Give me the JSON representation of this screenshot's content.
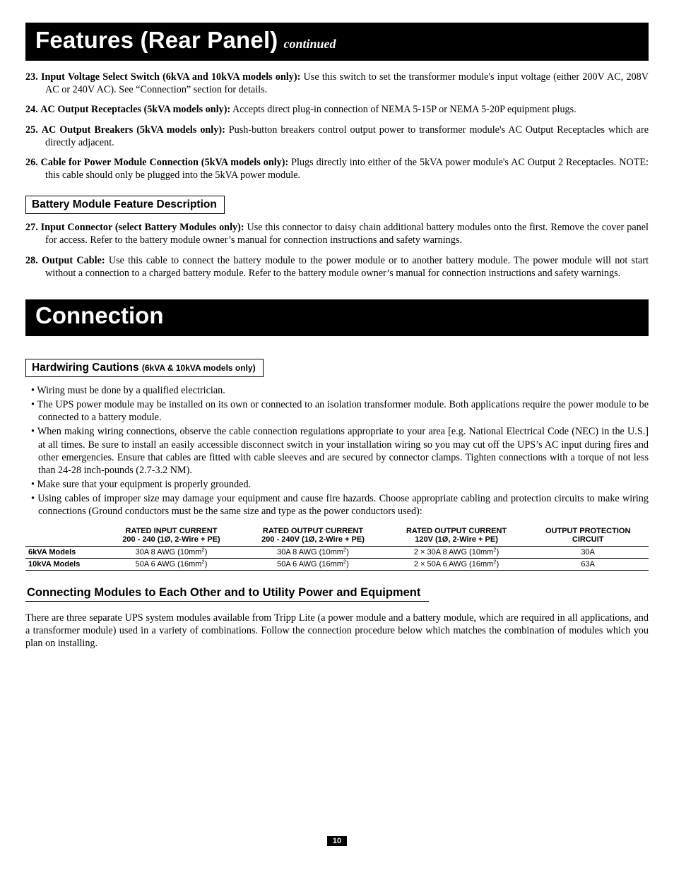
{
  "header1": {
    "title": "Features (Rear Panel)",
    "suffix": "continued"
  },
  "features": [
    {
      "num": "23.",
      "lead": "Input Voltage Select Switch (6kVA and 10kVA models only):",
      "text": " Use this switch to set the transformer module's input voltage (either 200V AC, 208V AC or 240V AC). See “Connection” section for details."
    },
    {
      "num": "24.",
      "lead": "AC Output Receptacles (5kVA models only):",
      "text": " Accepts direct plug-in connection of NEMA 5-15P or NEMA 5-20P equipment plugs."
    },
    {
      "num": "25.",
      "lead": "AC Output Breakers (5kVA models only):",
      "text": " Push-button breakers control output power to transformer module's AC Output Receptacles which are directly adjacent."
    },
    {
      "num": "26.",
      "lead": "Cable for Power Module Connection (5kVA models only):",
      "text": " Plugs directly into either of the 5kVA power module's AC Output 2 Receptacles. NOTE: this cable should only be plugged into the 5kVA power module."
    }
  ],
  "batteryHead": "Battery Module Feature Description",
  "battery": [
    {
      "num": "27.",
      "lead": "Input Connector (select Battery Modules only):",
      "text": " Use this connector to daisy chain additional battery modules onto the first. Remove the cover panel for access. Refer to the battery module owner’s manual for connection instructions and safety warnings."
    },
    {
      "num": "28.",
      "lead": "Output Cable:",
      "text": " Use this cable to connect the battery module to the power module or to another battery module. The power module will not start without a connection to a charged battery module. Refer to the battery module owner’s manual for connection instructions and safety warnings."
    }
  ],
  "header2": {
    "title": "Connection"
  },
  "hardwireHead": {
    "main": "Hardwiring Cautions ",
    "sub": "(6kVA & 10kVA models only)"
  },
  "bullets": [
    "Wiring must be done by a qualified electrician.",
    "The UPS power module may be installed on its own or connected to an isolation transformer module. Both applications require the power module to be connected to a battery module.",
    "When making wiring connections, observe the cable connection regulations appropriate to your area [e.g. National Electrical Code (NEC) in the U.S.] at all times. Be sure to install an easily accessible disconnect switch in your installation wiring so you may cut off the UPS’s AC input during fires and other emergencies. Ensure that cables are fitted with cable sleeves and are secured by connector clamps. Tighten connections with a torque of not less than 24-28 inch-pounds (2.7-3.2 NM).",
    "Make sure that your equipment is properly grounded.",
    "Using cables of improper size may damage your equipment and cause fire hazards. Choose appropriate cabling and protection circuits to make wiring connections (Ground conductors must be the same size and type as the power conductors used):"
  ],
  "table": {
    "headers": [
      {
        "l1": "",
        "l2": ""
      },
      {
        "l1": "RATED INPUT CURRENT",
        "l2": "200 - 240 (1Ø, 2-Wire + PE)"
      },
      {
        "l1": "RATED OUTPUT CURRENT",
        "l2": "200 - 240V (1Ø, 2-Wire + PE)"
      },
      {
        "l1": "RATED OUTPUT CURRENT",
        "l2": "120V (1Ø, 2-Wire + PE)"
      },
      {
        "l1": "OUTPUT PROTECTION",
        "l2": "CIRCUIT"
      }
    ],
    "rows": [
      {
        "label": "6kVA Models",
        "c1_a": "30A 8 AWG (10mm",
        "c1_b": ")",
        "c2_a": "30A 8 AWG (10mm",
        "c2_b": ")",
        "c3_a": "2 × 30A 8 AWG (10mm",
        "c3_b": ")",
        "c4": "30A"
      },
      {
        "label": "10kVA Models",
        "c1_a": "50A 6 AWG (16mm",
        "c1_b": ")",
        "c2_a": "50A 6 AWG (16mm",
        "c2_b": ")",
        "c3_a": "2 × 50A 6 AWG (16mm",
        "c3_b": ")",
        "c4": "63A"
      }
    ]
  },
  "connectHead": "Connecting Modules to Each Other and to Utility Power and Equipment",
  "connectPara": "There are three separate UPS system modules available from Tripp Lite (a power module and a battery module, which are required in all applications, and a transformer module) used in a variety of combinations. Follow the connection procedure below which matches the combination of modules which you plan on installing.",
  "pageNumber": "10"
}
